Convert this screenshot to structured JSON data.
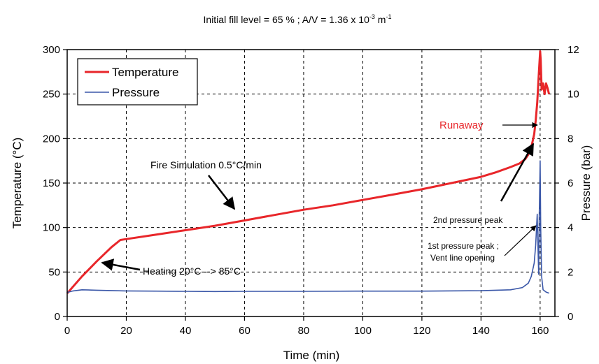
{
  "chart_data": {
    "type": "line",
    "title": "Initial fill level = 65 % ;  A/V = 1.36 x 10",
    "title_exponent": "-3",
    "title_unit": " m",
    "title_unit_exponent": "-1",
    "xlabel": "Time (min)",
    "ylabel": "Temperature (°C)",
    "y2label": "Pressure (bar)",
    "xlim": [
      0,
      165
    ],
    "ylim": [
      0,
      300
    ],
    "y2lim": [
      0,
      12
    ],
    "xticks": [
      "0",
      "20",
      "40",
      "60",
      "80",
      "100",
      "120",
      "140",
      "160"
    ],
    "yticks": [
      "0",
      "50",
      "100",
      "150",
      "200",
      "250",
      "300"
    ],
    "y2ticks": [
      "0",
      "2",
      "4",
      "6",
      "8",
      "10",
      "12"
    ],
    "grid": true,
    "legend_position": "top-left",
    "series": [
      {
        "name": "Temperature",
        "axis": "left",
        "color": "#e8262a",
        "x": [
          0,
          5,
          10,
          15,
          18,
          20,
          30,
          40,
          50,
          60,
          70,
          80,
          90,
          100,
          110,
          120,
          130,
          140,
          145,
          150,
          153,
          155,
          156,
          157,
          158,
          158.5,
          159,
          159.5,
          160,
          160.2,
          160.5,
          161,
          161.5,
          162,
          162.5,
          163
        ],
        "y": [
          26,
          45,
          62,
          78,
          86,
          87,
          92,
          97,
          102,
          108,
          114,
          120,
          125,
          131,
          137,
          143,
          150,
          157,
          162,
          168,
          172,
          177,
          182,
          190,
          205,
          220,
          240,
          270,
          298,
          288,
          255,
          262,
          250,
          262,
          257,
          250
        ]
      },
      {
        "name": "Pressure",
        "axis": "right",
        "color": "#3a57a8",
        "x": [
          0,
          2,
          5,
          10,
          20,
          30,
          40,
          50,
          60,
          80,
          100,
          120,
          140,
          150,
          154,
          156,
          157,
          158,
          158.5,
          159,
          159.3,
          159.5,
          159.7,
          160,
          160.2,
          160.5,
          161,
          162,
          163
        ],
        "y": [
          1.08,
          1.15,
          1.2,
          1.18,
          1.15,
          1.14,
          1.13,
          1.12,
          1.13,
          1.13,
          1.14,
          1.14,
          1.16,
          1.2,
          1.3,
          1.5,
          1.8,
          2.4,
          3.2,
          4.6,
          3.0,
          1.9,
          4.5,
          7.0,
          4.0,
          1.8,
          1.2,
          1.1,
          1.05
        ]
      }
    ],
    "annotations": [
      {
        "text": "Runaway",
        "color": "#e8262a"
      },
      {
        "text": "Fire Simulation 0.5°C/min"
      },
      {
        "text": "Heating 20°C --> 85°C"
      },
      {
        "text": "2nd pressure peak",
        "superscript": "nd"
      },
      {
        "text": "1st pressure peak ;",
        "superscript": "st"
      },
      {
        "text": "Vent line opening"
      }
    ]
  }
}
